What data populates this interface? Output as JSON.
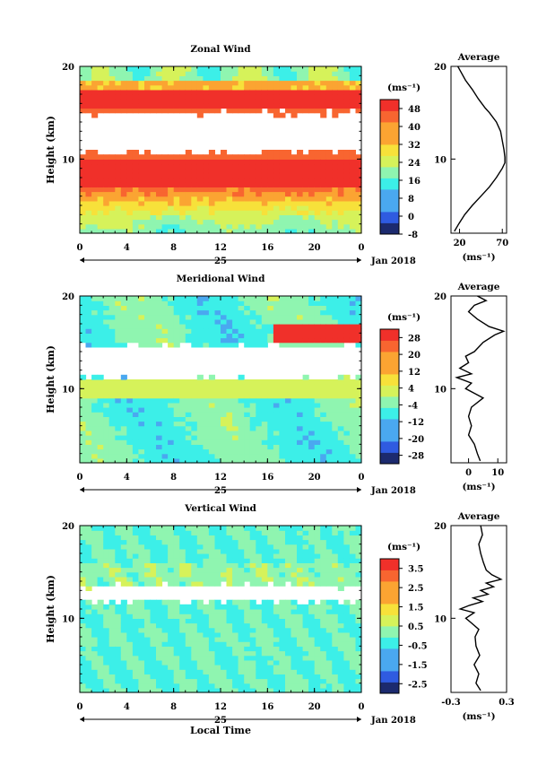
{
  "chart_data": [
    {
      "type": "heatmap",
      "title": "Zonal Wind",
      "ylabel": "Height (km)",
      "ylim": [
        2,
        20
      ],
      "ytick_labels": [
        "10",
        "20"
      ],
      "xlim": [
        0,
        24
      ],
      "xtick_labels": [
        "0",
        "4",
        "8",
        "12",
        "16",
        "20",
        "0"
      ],
      "day_label": "25",
      "date_label": "Jan 2018",
      "colorbar": {
        "unit": "(ms⁻¹)",
        "ticks": [
          "-8",
          "0",
          "8",
          "16",
          "24",
          "32",
          "40",
          "48"
        ],
        "range": [
          -8,
          52
        ]
      },
      "missing_bands_km": [
        [
          10.4,
          15.3
        ]
      ],
      "profile": {
        "title": "Average",
        "unit": "(ms⁻¹)",
        "xtick_labels": [
          "20",
          "70"
        ],
        "ytick_labels": [
          "10",
          "20"
        ],
        "xlim": [
          10,
          75
        ],
        "points": [
          {
            "h": 2.2,
            "v": 14
          },
          {
            "h": 3,
            "v": 19
          },
          {
            "h": 4,
            "v": 26
          },
          {
            "h": 5,
            "v": 35
          },
          {
            "h": 6,
            "v": 45
          },
          {
            "h": 7,
            "v": 55
          },
          {
            "h": 8,
            "v": 63
          },
          {
            "h": 9,
            "v": 70
          },
          {
            "h": 9.6,
            "v": 73
          },
          {
            "h": 10.2,
            "v": 73
          },
          {
            "h": 11,
            "v": 72
          },
          {
            "h": 12,
            "v": 70
          },
          {
            "h": 13,
            "v": 68
          },
          {
            "h": 14,
            "v": 63
          },
          {
            "h": 15,
            "v": 55
          },
          {
            "h": 15.5,
            "v": 50
          },
          {
            "h": 16.5,
            "v": 42
          },
          {
            "h": 17.5,
            "v": 35
          },
          {
            "h": 18.5,
            "v": 27
          },
          {
            "h": 19.5,
            "v": 21
          },
          {
            "h": 20,
            "v": 18
          }
        ]
      }
    },
    {
      "type": "heatmap",
      "title": "Meridional Wind",
      "ylabel": "Height (km)",
      "ylim": [
        2,
        20
      ],
      "ytick_labels": [
        "10",
        "20"
      ],
      "xlim": [
        0,
        24
      ],
      "xtick_labels": [
        "0",
        "4",
        "8",
        "12",
        "16",
        "20",
        "0"
      ],
      "day_label": "25",
      "date_label": "Jan 2018",
      "colorbar": {
        "unit": "(ms⁻¹)",
        "ticks": [
          "-28",
          "-20",
          "-12",
          "-4",
          "4",
          "12",
          "20",
          "28"
        ],
        "range": [
          -32,
          32
        ]
      },
      "missing_bands_km": [
        [
          10.8,
          14.8
        ]
      ],
      "profile": {
        "title": "Average",
        "unit": "(ms⁻¹)",
        "xtick_labels": [
          "0",
          "10"
        ],
        "ytick_labels": [
          "10",
          "20"
        ],
        "xlim": [
          -6,
          13
        ],
        "points": [
          {
            "h": 2.2,
            "v": 4
          },
          {
            "h": 3,
            "v": 3
          },
          {
            "h": 4,
            "v": 2
          },
          {
            "h": 5,
            "v": 0
          },
          {
            "h": 6,
            "v": 1
          },
          {
            "h": 7,
            "v": 0
          },
          {
            "h": 8,
            "v": 1
          },
          {
            "h": 9,
            "v": 5
          },
          {
            "h": 9.5,
            "v": 2
          },
          {
            "h": 10,
            "v": -1
          },
          {
            "h": 10.6,
            "v": 1
          },
          {
            "h": 11.2,
            "v": -4
          },
          {
            "h": 11.6,
            "v": 1
          },
          {
            "h": 12.2,
            "v": -3
          },
          {
            "h": 12.8,
            "v": 0
          },
          {
            "h": 13.5,
            "v": -1
          },
          {
            "h": 14,
            "v": 2
          },
          {
            "h": 15,
            "v": 5
          },
          {
            "h": 15.8,
            "v": 9
          },
          {
            "h": 16.2,
            "v": 12
          },
          {
            "h": 16.7,
            "v": 7
          },
          {
            "h": 17.5,
            "v": 3
          },
          {
            "h": 18.3,
            "v": 0
          },
          {
            "h": 19,
            "v": 2
          },
          {
            "h": 19.5,
            "v": 6
          },
          {
            "h": 20,
            "v": 3
          }
        ]
      }
    },
    {
      "type": "heatmap",
      "title": "Vertical Wind",
      "ylabel": "Height (km)",
      "ylim": [
        2,
        20
      ],
      "ytick_labels": [
        "10",
        "20"
      ],
      "xlim": [
        0,
        24
      ],
      "xtick_labels": [
        "0",
        "4",
        "8",
        "12",
        "16",
        "20",
        "0"
      ],
      "day_label": "25",
      "date_label": "Jan 2018",
      "xlabel": "Local Time",
      "colorbar": {
        "unit": "(ms⁻¹)",
        "ticks": [
          "-2.5",
          "-1.5",
          "-0.5",
          "0.5",
          "1.5",
          "2.5",
          "3.5"
        ],
        "range": [
          -3,
          4
        ]
      },
      "missing_bands_km": [
        [
          11.6,
          13.8
        ]
      ],
      "profile": {
        "title": "Average",
        "unit": "(ms⁻¹)",
        "xtick_labels": [
          "-0.3",
          "0.3"
        ],
        "ytick_labels": [
          "10",
          "20"
        ],
        "xlim": [
          -0.3,
          0.3
        ],
        "points": [
          {
            "h": 2.2,
            "v": 0.02
          },
          {
            "h": 3,
            "v": -0.03
          },
          {
            "h": 4,
            "v": 0.0
          },
          {
            "h": 5,
            "v": -0.05
          },
          {
            "h": 6,
            "v": 0.01
          },
          {
            "h": 7,
            "v": -0.03
          },
          {
            "h": 8,
            "v": -0.04
          },
          {
            "h": 8.8,
            "v": 0.0
          },
          {
            "h": 9.5,
            "v": -0.08
          },
          {
            "h": 10,
            "v": -0.14
          },
          {
            "h": 10.6,
            "v": -0.05
          },
          {
            "h": 11,
            "v": -0.2
          },
          {
            "h": 11.4,
            "v": -0.1
          },
          {
            "h": 11.8,
            "v": 0.04
          },
          {
            "h": 12.2,
            "v": -0.06
          },
          {
            "h": 12.6,
            "v": 0.1
          },
          {
            "h": 13,
            "v": 0.02
          },
          {
            "h": 13.4,
            "v": 0.16
          },
          {
            "h": 13.8,
            "v": 0.08
          },
          {
            "h": 14.2,
            "v": 0.24
          },
          {
            "h": 14.7,
            "v": 0.14
          },
          {
            "h": 15.2,
            "v": 0.08
          },
          {
            "h": 16,
            "v": 0.05
          },
          {
            "h": 17,
            "v": 0.02
          },
          {
            "h": 18,
            "v": 0.0
          },
          {
            "h": 19,
            "v": 0.04
          },
          {
            "h": 20,
            "v": 0.02
          }
        ]
      }
    }
  ]
}
